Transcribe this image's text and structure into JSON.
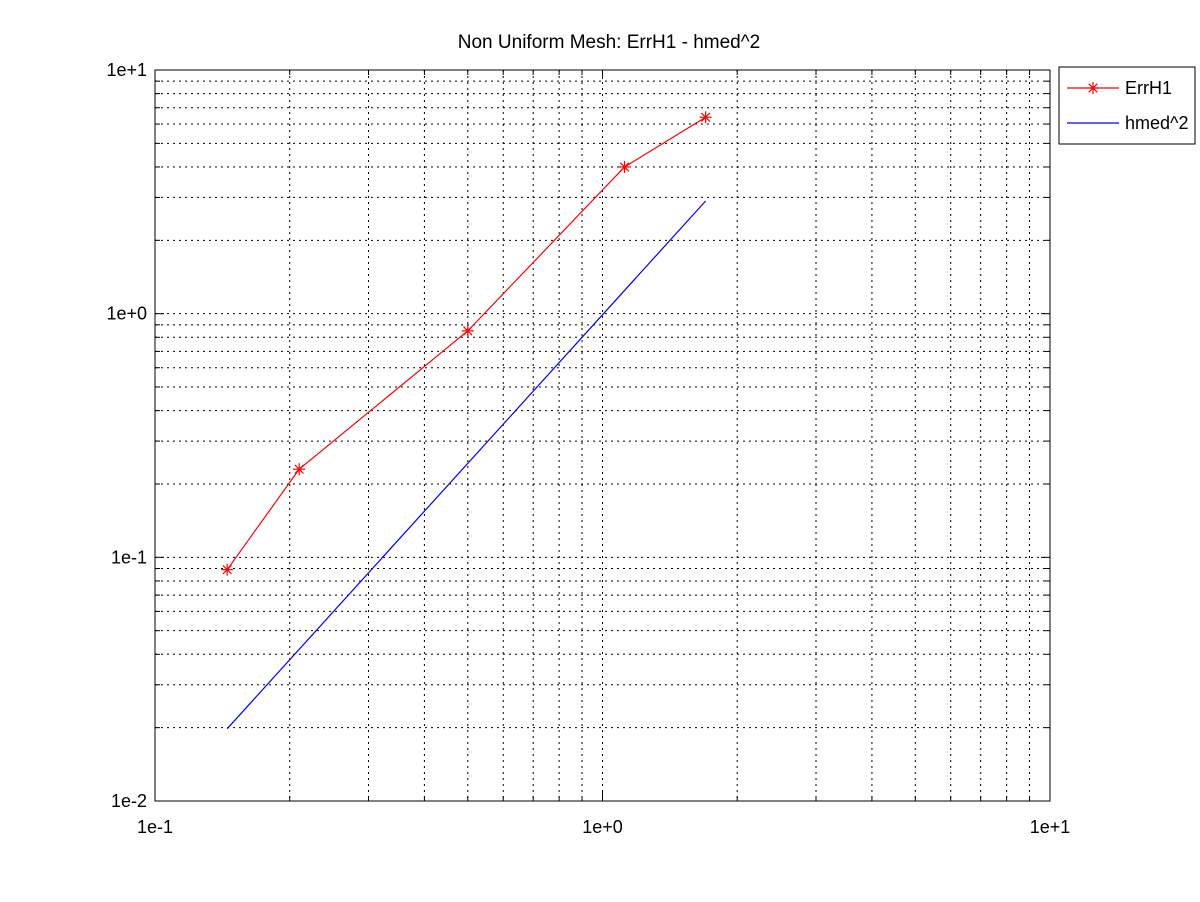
{
  "chart_data": {
    "type": "line",
    "title": "Non Uniform Mesh: ErrH1 - hmed^2",
    "xlabel": "",
    "ylabel": "",
    "xscale": "log",
    "yscale": "log",
    "xlim": [
      0.1,
      10
    ],
    "ylim": [
      0.01,
      10
    ],
    "grid": true,
    "legend_position": "top-right outside",
    "x_tick_labels": [
      "1e-1",
      "1e+0",
      "1e+1"
    ],
    "y_tick_labels": [
      "1e-2",
      "1e-1",
      "1e+0",
      "1e+1"
    ],
    "series": [
      {
        "name": "ErrH1",
        "color": "#ff0000",
        "marker": "asterisk",
        "x": [
          0.145,
          0.21,
          0.5,
          1.12,
          1.7
        ],
        "y": [
          0.089,
          0.23,
          0.85,
          4.0,
          6.4
        ]
      },
      {
        "name": "hmed^2",
        "color": "#0000ff",
        "marker": "none",
        "x": [
          0.145,
          1.7
        ],
        "y": [
          0.0198,
          2.9
        ]
      }
    ]
  }
}
